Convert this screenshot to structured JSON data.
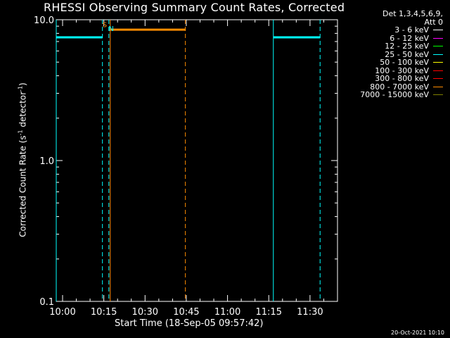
{
  "chart_data": {
    "type": "line",
    "title": "RHESSI Observing Summary Count Rates, Corrected",
    "xlabel": "Start Time (18-Sep-05 09:57:42)",
    "ylabel_parts": [
      "Corrected Count Rate (s",
      "-1",
      " detector",
      "-1",
      ")"
    ],
    "ylim": [
      0.1,
      10.0
    ],
    "y_scale": "log",
    "y_ticks": [
      {
        "value": 0.1,
        "label": "0.1"
      },
      {
        "value": 1.0,
        "label": "1.0"
      },
      {
        "value": 10.0,
        "label": "10.0"
      }
    ],
    "xlim": [
      "09:57:42",
      "11:40:00"
    ],
    "x_ticks": [
      {
        "value": "10:00",
        "label": "10:00"
      },
      {
        "value": "10:15",
        "label": "10:15"
      },
      {
        "value": "10:30",
        "label": "10:30"
      },
      {
        "value": "10:45",
        "label": "10:45"
      },
      {
        "value": "11:00",
        "label": "11:00"
      },
      {
        "value": "11:15",
        "label": "11:15"
      },
      {
        "value": "11:30",
        "label": "11:30"
      }
    ],
    "series": [
      {
        "name": "3 - 6 keV",
        "color": "#ffffff",
        "segments": []
      },
      {
        "name": "6 - 12 keV",
        "color": "#ff00ff",
        "segments": []
      },
      {
        "name": "12 - 25 keV",
        "color": "#00ff00",
        "segments": []
      },
      {
        "name": "25 - 50 keV",
        "color": "#00ffff",
        "segments": [
          {
            "x": [
              "09:57:42",
              "10:14:30"
            ],
            "y": 7.5
          },
          {
            "x": [
              "11:16:40",
              "11:33:40"
            ],
            "y": 7.5
          }
        ]
      },
      {
        "name": "50 - 100 keV",
        "color": "#ffff00",
        "segments": []
      },
      {
        "name": "100 - 300 keV",
        "color": "#ff0000",
        "segments": []
      },
      {
        "name": "300 - 800 keV",
        "color": "#ff0000",
        "segments": []
      },
      {
        "name": "800 - 7000 keV",
        "color": "#ff8c00",
        "segments": [
          {
            "x": [
              "10:17:20",
              "10:44:40"
            ],
            "y": 8.5
          }
        ]
      },
      {
        "name": "7000 - 15000 keV",
        "color": "#808000",
        "segments": []
      }
    ],
    "vertical_markers": [
      {
        "time": "09:57:42",
        "color": "#00ffff",
        "style": "solid"
      },
      {
        "time": "10:14:30",
        "color": "#00ffff",
        "style": "dashed"
      },
      {
        "time": "10:16:50",
        "color": "#00ffff",
        "style": "dashed"
      },
      {
        "time": "10:17:20",
        "color": "#ff8c00",
        "style": "solid"
      },
      {
        "time": "10:44:40",
        "color": "#ff8c00",
        "style": "dashed"
      },
      {
        "time": "11:16:40",
        "color": "#00ffff",
        "style": "solid"
      },
      {
        "time": "11:33:40",
        "color": "#00ffff",
        "style": "dashed"
      }
    ],
    "annotations": [
      {
        "text": "S",
        "time": "10:15:20",
        "y": 9.3,
        "color": "#ff8c00"
      },
      {
        "text": "N",
        "time": "10:17:40",
        "y": 8.7,
        "color": "#00ffff"
      }
    ],
    "legend_header": [
      "Det 1,3,4,5,6,9,",
      "Att 0"
    ],
    "legend_position": "top-right",
    "datestamp": "20-Oct-2021 10:10"
  }
}
